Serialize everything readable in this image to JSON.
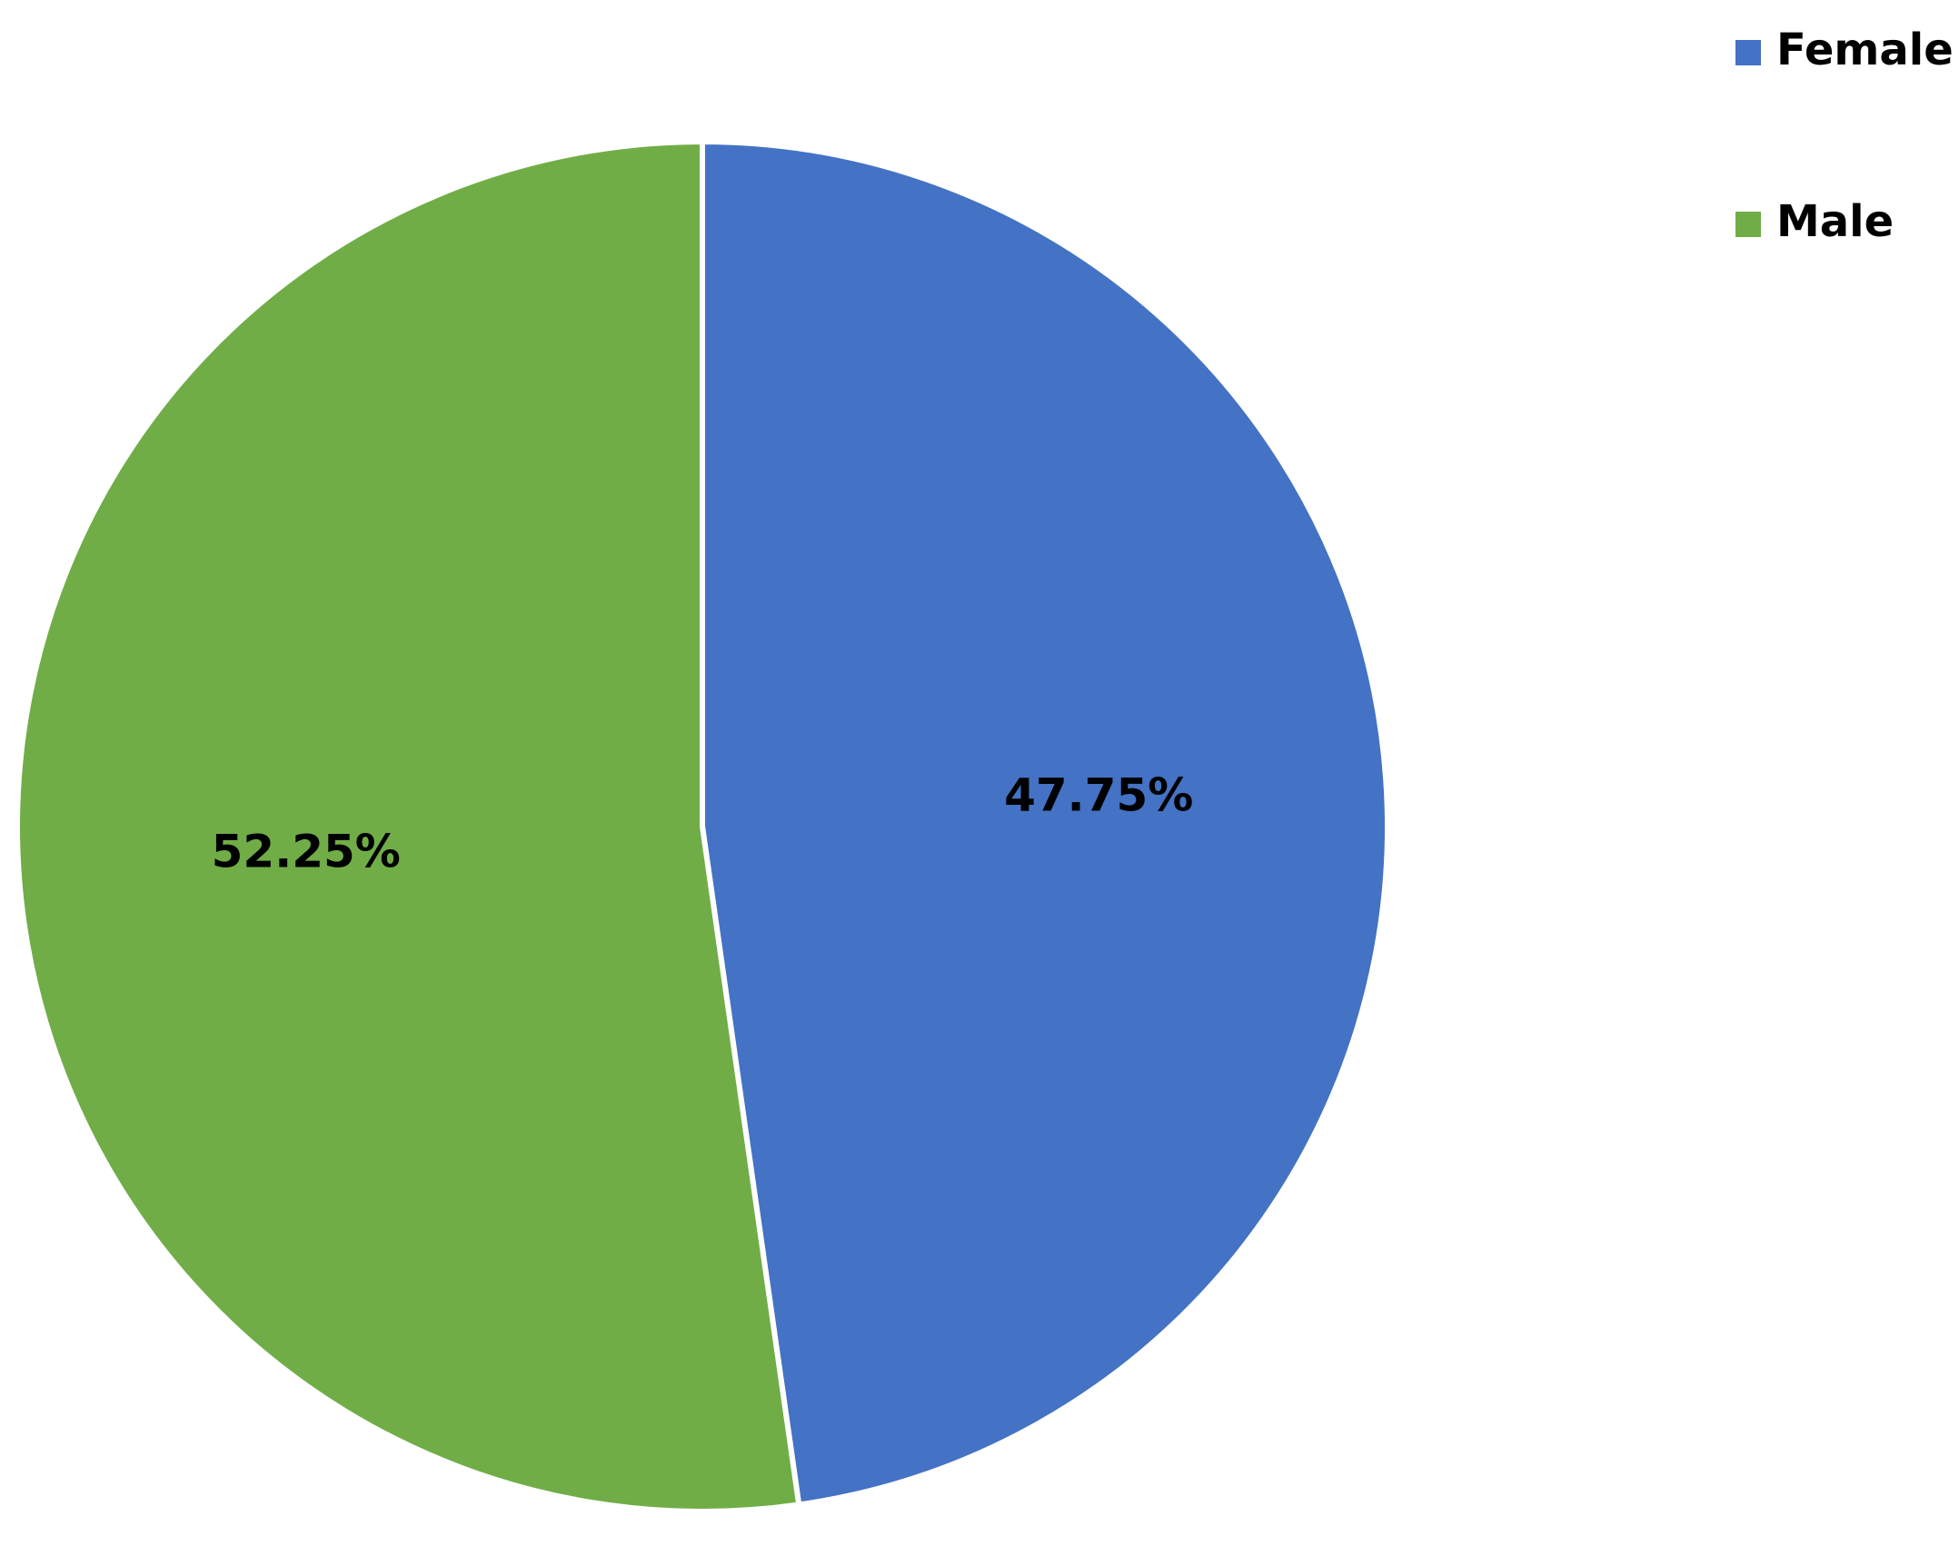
{
  "chart_data": {
    "type": "pie",
    "categories": [
      "Female",
      "Male"
    ],
    "values": [
      47.75,
      52.25
    ],
    "value_labels": [
      "47.75%",
      "52.25%"
    ],
    "colors": [
      "#4472c4",
      "#70ad47"
    ],
    "legend": "top-right"
  }
}
